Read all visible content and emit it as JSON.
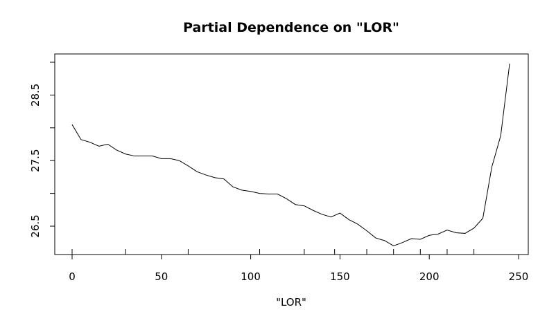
{
  "chart_data": {
    "type": "line",
    "title": "Partial Dependence on \"LOR\"",
    "xlabel": "\"LOR\"",
    "ylabel": "",
    "xlim": [
      0,
      250
    ],
    "ylim": [
      26.05,
      29.05
    ],
    "x_ticks": [
      0,
      50,
      100,
      150,
      200,
      250
    ],
    "x_tick_labels": [
      "0",
      "50",
      "100",
      "150",
      "200",
      "250"
    ],
    "y_ticks": [
      26.5,
      27.0,
      27.5,
      28.0,
      28.5,
      29.0
    ],
    "y_tick_labels": [
      "26.5",
      "",
      "27.5",
      "",
      "28.5",
      ""
    ],
    "rug_x": [
      0,
      30,
      65,
      105,
      130,
      147,
      165,
      180,
      195,
      210,
      225
    ],
    "series": [
      {
        "x": [
          0,
          5,
          10,
          15,
          20,
          25,
          30,
          35,
          40,
          45,
          50,
          55,
          60,
          65,
          70,
          75,
          80,
          85,
          90,
          95,
          100,
          105,
          110,
          115,
          120,
          125,
          130,
          135,
          140,
          145,
          150,
          155,
          160,
          165,
          170,
          175,
          180,
          185,
          190,
          195,
          200,
          205,
          210,
          215,
          220,
          225,
          230,
          235,
          240,
          245
        ],
        "values": [
          28.05,
          27.82,
          27.78,
          27.72,
          27.75,
          27.66,
          27.6,
          27.57,
          27.57,
          27.57,
          27.53,
          27.53,
          27.5,
          27.42,
          27.33,
          27.28,
          27.24,
          27.22,
          27.1,
          27.05,
          27.03,
          27.0,
          26.99,
          26.99,
          26.92,
          26.83,
          26.81,
          26.74,
          26.68,
          26.64,
          26.7,
          26.6,
          26.53,
          26.43,
          26.32,
          26.28,
          26.2,
          26.25,
          26.31,
          26.3,
          26.36,
          26.38,
          26.44,
          26.4,
          26.39,
          26.47,
          26.62,
          27.4,
          27.88,
          28.98
        ]
      }
    ]
  }
}
